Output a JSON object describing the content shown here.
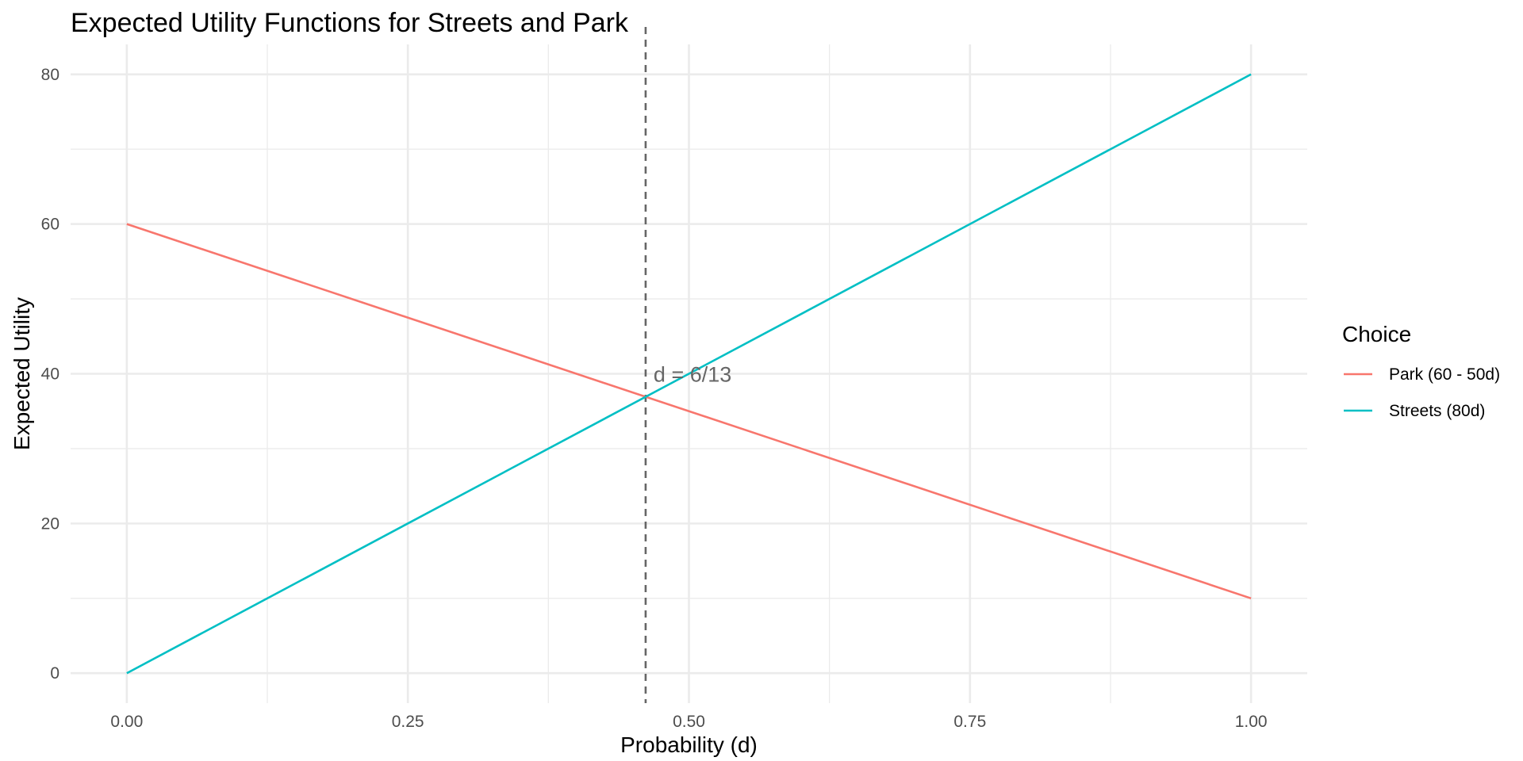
{
  "chart_data": {
    "type": "line",
    "title": "Expected Utility Functions for Streets and Park",
    "xlabel": "Probability (d)",
    "ylabel": "Expected Utility",
    "xlim": [
      -0.05,
      1.05
    ],
    "ylim": [
      -4,
      84
    ],
    "x_ticks": [
      0,
      0.25,
      0.5,
      0.75,
      1
    ],
    "x_tick_labels": [
      "0.00",
      "0.25",
      "0.50",
      "0.75",
      "1.00"
    ],
    "y_ticks": [
      0,
      20,
      40,
      60,
      80
    ],
    "y_tick_labels": [
      "0",
      "20",
      "40",
      "60",
      "80"
    ],
    "grid": true,
    "legend": {
      "title": "Choice",
      "position": "right"
    },
    "series": [
      {
        "name": "Park (60 - 50d)",
        "color": "#F8766D",
        "x": [
          0,
          1
        ],
        "y": [
          60,
          10
        ]
      },
      {
        "name": "Streets (80d)",
        "color": "#00BFC4",
        "x": [
          0,
          1
        ],
        "y": [
          0,
          80
        ]
      }
    ],
    "reference_line": {
      "orientation": "vertical",
      "x": 0.4615,
      "style": "dashed",
      "color": "#666666"
    },
    "annotations": [
      {
        "text": "d = 6/13",
        "x": 0.4615,
        "y": 40
      }
    ]
  }
}
